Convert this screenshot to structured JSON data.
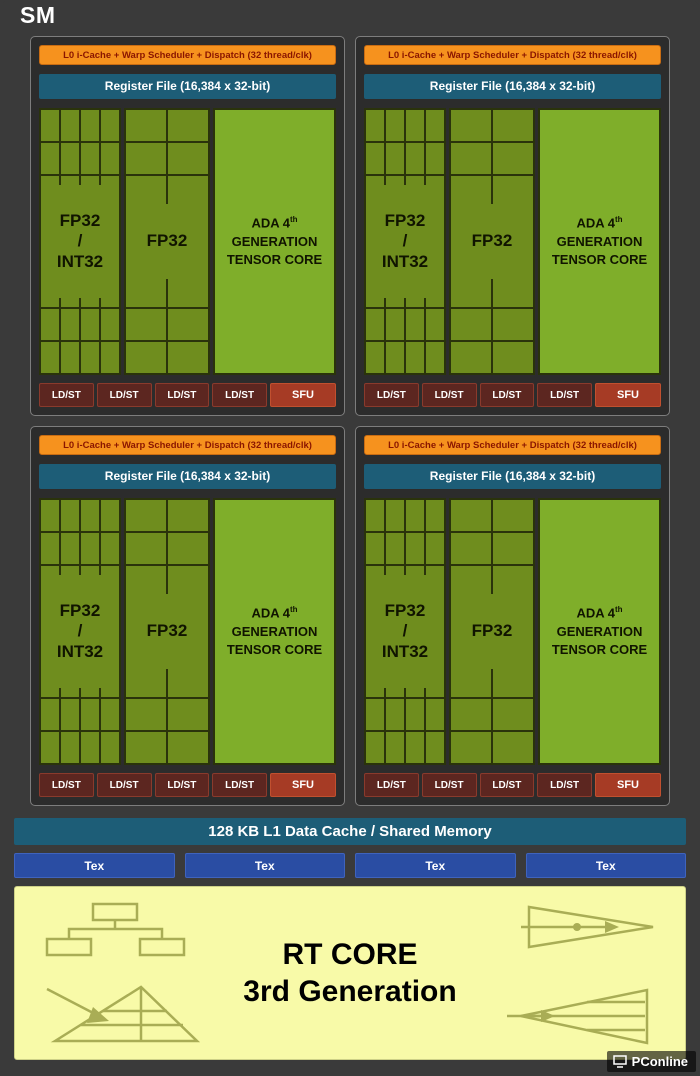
{
  "page": {
    "title": "SM"
  },
  "structure": {
    "partition_count": 4
  },
  "quadrant": {
    "scheduler_label": "L0 i-Cache + Warp Scheduler + Dispatch (32 thread/clk)",
    "register_file_label": "Register File (16,384 x 32-bit)",
    "fp32_int32_label": "FP32\n/\nINT32",
    "fp32_label": "FP32",
    "tensor_core": {
      "line1": "ADA 4",
      "line1_sup": "th",
      "line2": "GENERATION",
      "line3": "TENSOR CORE"
    },
    "ldst_label": "LD/ST",
    "sfu_label": "SFU"
  },
  "memory": {
    "l1_label": "128 KB L1 Data Cache / Shared Memory"
  },
  "tex": {
    "label": "Tex"
  },
  "rt_core": {
    "line1": "RT CORE",
    "line2": "3rd Generation"
  },
  "watermark": {
    "label": "PConline"
  },
  "colors": {
    "orange": "#f6921e",
    "orange-text": "#8a1500",
    "teal": "#1d5d77",
    "cell-green": "#6f8d1e",
    "grid-line": "#2a330b",
    "tensor-green": "#7fae2a",
    "ldst-red": "#5c2620",
    "sfu-red": "#a63b25",
    "tex-blue": "#2a4da3",
    "rt-yellow": "#f8faa8",
    "icon": "#a9ad55"
  }
}
